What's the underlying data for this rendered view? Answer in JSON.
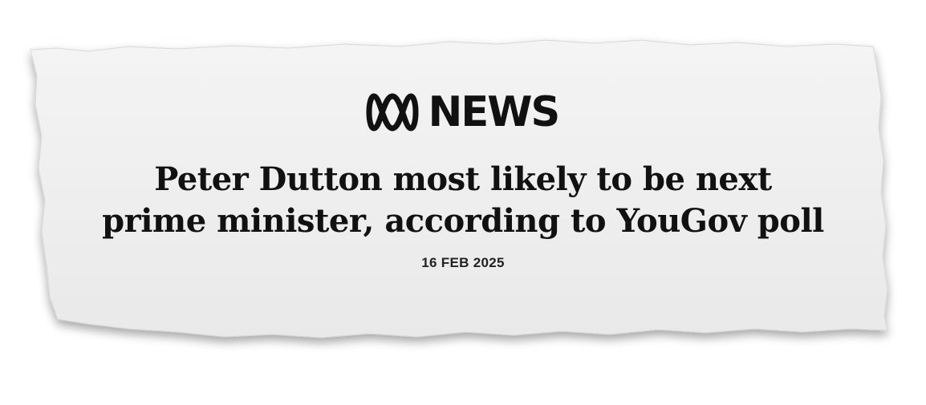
{
  "clipping": {
    "logo": {
      "icon": "abc-lissajous-icon",
      "wordmark": "NEWS"
    },
    "headline": {
      "line1": "Peter Dutton most likely to be next",
      "line2": "prime minister, according to YouGov poll"
    },
    "date": "16 FEB 2025"
  }
}
